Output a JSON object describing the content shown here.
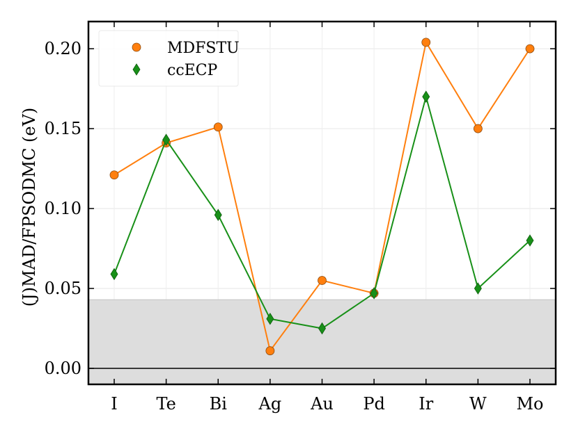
{
  "chart_data": {
    "type": "line",
    "title": "",
    "xlabel": "",
    "ylabel": "(J)MAD/FPSODMC (eV)",
    "categories": [
      "I",
      "Te",
      "Bi",
      "Ag",
      "Au",
      "Pd",
      "Ir",
      "W",
      "Mo"
    ],
    "ylim": [
      -0.01,
      0.217
    ],
    "yticks": [
      0.0,
      0.05,
      0.1,
      0.15,
      0.2
    ],
    "ytick_labels": [
      "0.00",
      "0.05",
      "0.10",
      "0.15",
      "0.20"
    ],
    "grid": true,
    "shaded_band": {
      "from": -0.01,
      "to": 0.043,
      "color": "#dddddd"
    },
    "zero_line": 0.0,
    "legend_position": "top-left",
    "series": [
      {
        "name": "MDFSTU",
        "color": "#ff7f0e",
        "marker": "circle",
        "values": [
          0.121,
          0.141,
          0.151,
          0.011,
          0.055,
          0.047,
          0.204,
          0.15,
          0.2
        ]
      },
      {
        "name": "ccECP",
        "color": "#189018",
        "marker": "diamond",
        "values": [
          0.059,
          0.143,
          0.096,
          0.031,
          0.025,
          0.047,
          0.17,
          0.05,
          0.08
        ]
      }
    ]
  }
}
